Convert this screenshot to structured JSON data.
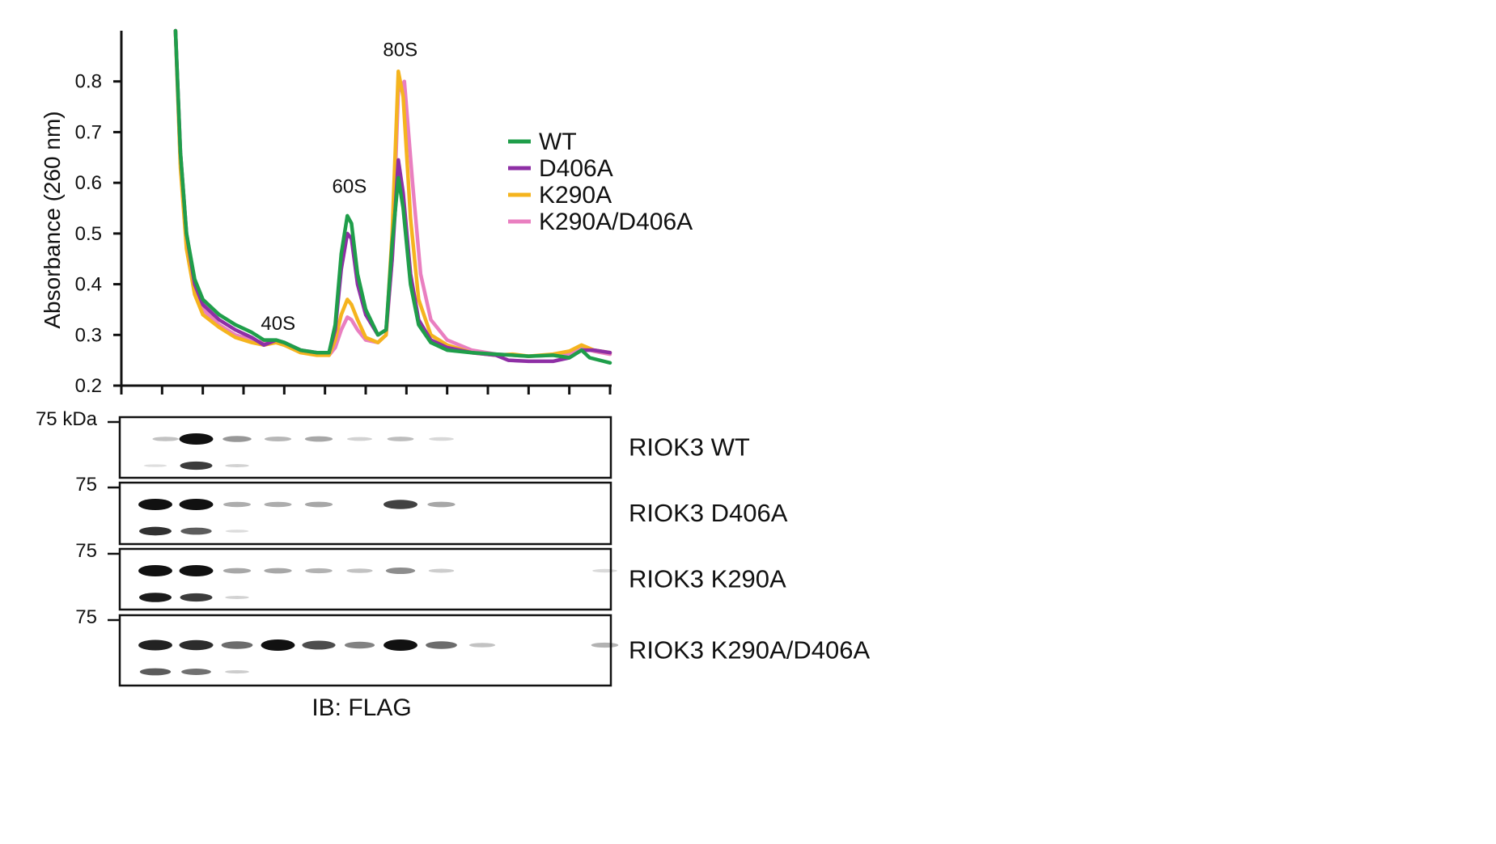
{
  "chart_data": {
    "type": "line",
    "title": "",
    "xlabel": "",
    "ylabel": "Absorbance (260 nm)",
    "xlim": [
      0,
      12
    ],
    "ylim": [
      0.2,
      0.9
    ],
    "yticks": [
      "0.2",
      "0.3",
      "0.4",
      "0.5",
      "0.6",
      "0.7",
      "0.8"
    ],
    "x_tick_count": 13,
    "legend_position": "top-right",
    "peaks": [
      {
        "label": "40S",
        "x": 3.85,
        "y": 0.31
      },
      {
        "label": "60S",
        "x": 5.6,
        "y": 0.58
      },
      {
        "label": "80S",
        "x": 6.85,
        "y": 0.85
      }
    ],
    "series": [
      {
        "name": "WT",
        "color": "#1f9e4a",
        "points": [
          [
            1.33,
            0.9
          ],
          [
            1.45,
            0.66
          ],
          [
            1.6,
            0.5
          ],
          [
            1.8,
            0.41
          ],
          [
            2.0,
            0.37
          ],
          [
            2.4,
            0.34
          ],
          [
            2.8,
            0.32
          ],
          [
            3.2,
            0.305
          ],
          [
            3.5,
            0.29
          ],
          [
            3.8,
            0.29
          ],
          [
            4.0,
            0.285
          ],
          [
            4.4,
            0.27
          ],
          [
            4.8,
            0.265
          ],
          [
            5.1,
            0.265
          ],
          [
            5.25,
            0.32
          ],
          [
            5.4,
            0.46
          ],
          [
            5.55,
            0.535
          ],
          [
            5.65,
            0.52
          ],
          [
            5.8,
            0.42
          ],
          [
            6.0,
            0.35
          ],
          [
            6.3,
            0.3
          ],
          [
            6.5,
            0.31
          ],
          [
            6.65,
            0.48
          ],
          [
            6.8,
            0.61
          ],
          [
            6.92,
            0.55
          ],
          [
            7.1,
            0.4
          ],
          [
            7.3,
            0.32
          ],
          [
            7.6,
            0.285
          ],
          [
            8.0,
            0.27
          ],
          [
            8.6,
            0.265
          ],
          [
            9.2,
            0.262
          ],
          [
            10.0,
            0.258
          ],
          [
            10.6,
            0.26
          ],
          [
            11.0,
            0.255
          ],
          [
            11.3,
            0.27
          ],
          [
            11.5,
            0.255
          ],
          [
            12.0,
            0.245
          ]
        ]
      },
      {
        "name": "D406A",
        "color": "#8e2fa5",
        "points": [
          [
            1.33,
            0.9
          ],
          [
            1.45,
            0.66
          ],
          [
            1.6,
            0.5
          ],
          [
            1.8,
            0.4
          ],
          [
            2.0,
            0.36
          ],
          [
            2.4,
            0.33
          ],
          [
            2.8,
            0.31
          ],
          [
            3.2,
            0.295
          ],
          [
            3.5,
            0.28
          ],
          [
            3.8,
            0.29
          ],
          [
            4.0,
            0.285
          ],
          [
            4.4,
            0.27
          ],
          [
            4.8,
            0.265
          ],
          [
            5.1,
            0.265
          ],
          [
            5.25,
            0.31
          ],
          [
            5.4,
            0.43
          ],
          [
            5.55,
            0.5
          ],
          [
            5.65,
            0.49
          ],
          [
            5.8,
            0.4
          ],
          [
            6.0,
            0.34
          ],
          [
            6.3,
            0.3
          ],
          [
            6.5,
            0.31
          ],
          [
            6.65,
            0.45
          ],
          [
            6.8,
            0.645
          ],
          [
            6.92,
            0.58
          ],
          [
            7.1,
            0.42
          ],
          [
            7.3,
            0.33
          ],
          [
            7.6,
            0.29
          ],
          [
            8.0,
            0.275
          ],
          [
            8.6,
            0.265
          ],
          [
            9.2,
            0.26
          ],
          [
            9.5,
            0.25
          ],
          [
            10.0,
            0.248
          ],
          [
            10.6,
            0.248
          ],
          [
            11.0,
            0.255
          ],
          [
            11.3,
            0.27
          ],
          [
            11.6,
            0.27
          ],
          [
            12.0,
            0.265
          ]
        ]
      },
      {
        "name": "K290A",
        "color": "#f5b41e",
        "points": [
          [
            1.33,
            0.9
          ],
          [
            1.45,
            0.63
          ],
          [
            1.6,
            0.47
          ],
          [
            1.8,
            0.38
          ],
          [
            2.0,
            0.34
          ],
          [
            2.4,
            0.315
          ],
          [
            2.8,
            0.295
          ],
          [
            3.2,
            0.285
          ],
          [
            3.5,
            0.28
          ],
          [
            3.8,
            0.285
          ],
          [
            4.0,
            0.28
          ],
          [
            4.4,
            0.265
          ],
          [
            4.8,
            0.26
          ],
          [
            5.1,
            0.26
          ],
          [
            5.25,
            0.29
          ],
          [
            5.4,
            0.34
          ],
          [
            5.55,
            0.37
          ],
          [
            5.65,
            0.36
          ],
          [
            5.8,
            0.33
          ],
          [
            6.0,
            0.295
          ],
          [
            6.3,
            0.285
          ],
          [
            6.5,
            0.3
          ],
          [
            6.65,
            0.5
          ],
          [
            6.8,
            0.82
          ],
          [
            6.92,
            0.77
          ],
          [
            7.1,
            0.53
          ],
          [
            7.3,
            0.37
          ],
          [
            7.6,
            0.3
          ],
          [
            8.0,
            0.28
          ],
          [
            8.6,
            0.265
          ],
          [
            9.2,
            0.26
          ],
          [
            9.6,
            0.262
          ],
          [
            10.0,
            0.258
          ],
          [
            10.6,
            0.262
          ],
          [
            11.0,
            0.268
          ],
          [
            11.3,
            0.28
          ],
          [
            11.6,
            0.27
          ],
          [
            12.0,
            0.265
          ]
        ]
      },
      {
        "name": "K290A/D406A",
        "color": "#e97fc0",
        "points": [
          [
            1.33,
            0.9
          ],
          [
            1.45,
            0.64
          ],
          [
            1.6,
            0.48
          ],
          [
            1.8,
            0.39
          ],
          [
            2.0,
            0.35
          ],
          [
            2.4,
            0.32
          ],
          [
            2.8,
            0.3
          ],
          [
            3.2,
            0.29
          ],
          [
            3.5,
            0.285
          ],
          [
            3.8,
            0.285
          ],
          [
            4.0,
            0.28
          ],
          [
            4.4,
            0.27
          ],
          [
            4.8,
            0.262
          ],
          [
            5.1,
            0.26
          ],
          [
            5.25,
            0.275
          ],
          [
            5.4,
            0.31
          ],
          [
            5.55,
            0.335
          ],
          [
            5.65,
            0.33
          ],
          [
            5.8,
            0.31
          ],
          [
            6.0,
            0.29
          ],
          [
            6.3,
            0.285
          ],
          [
            6.5,
            0.3
          ],
          [
            6.65,
            0.45
          ],
          [
            6.8,
            0.78
          ],
          [
            6.95,
            0.8
          ],
          [
            7.15,
            0.6
          ],
          [
            7.35,
            0.42
          ],
          [
            7.6,
            0.33
          ],
          [
            8.0,
            0.29
          ],
          [
            8.6,
            0.27
          ],
          [
            9.2,
            0.262
          ],
          [
            10.0,
            0.258
          ],
          [
            10.6,
            0.26
          ],
          [
            11.0,
            0.262
          ],
          [
            11.3,
            0.275
          ],
          [
            11.6,
            0.268
          ],
          [
            12.0,
            0.262
          ]
        ]
      }
    ]
  },
  "blots": {
    "panels": [
      {
        "label": "RIOK3 WT",
        "mw": "75 kDa",
        "bands": [
          [
            0.25,
            0.3
          ],
          [
            1,
            2.0
          ],
          [
            1,
            1.3
          ],
          [
            2,
            0.7
          ],
          [
            3,
            0.4
          ],
          [
            4,
            0.55
          ],
          [
            5,
            0.15
          ],
          [
            6,
            0.35
          ],
          [
            7,
            0.1
          ]
        ],
        "lower_bands": [
          [
            0,
            0.08
          ],
          [
            1,
            1.6
          ],
          [
            2,
            0.2
          ]
        ]
      },
      {
        "label": "RIOK3 D406A",
        "mw": "75",
        "bands": [
          [
            0,
            2.0
          ],
          [
            1,
            2.0
          ],
          [
            2,
            0.5
          ],
          [
            3,
            0.5
          ],
          [
            4,
            0.55
          ],
          [
            6,
            1.5
          ],
          [
            7,
            0.55
          ]
        ],
        "lower_bands": [
          [
            0,
            1.7
          ],
          [
            1,
            1.3
          ],
          [
            2,
            0.1
          ]
        ]
      },
      {
        "label": "RIOK3 K290A",
        "mw": "75",
        "bands": [
          [
            0,
            2.0
          ],
          [
            1,
            2.0
          ],
          [
            2,
            0.55
          ],
          [
            3,
            0.55
          ],
          [
            4,
            0.45
          ],
          [
            5,
            0.3
          ],
          [
            6,
            0.8
          ],
          [
            7,
            0.2
          ],
          [
            11,
            0.08
          ]
        ],
        "lower_bands": [
          [
            0,
            1.9
          ],
          [
            1,
            1.6
          ],
          [
            2,
            0.2
          ]
        ]
      },
      {
        "label": "RIOK3 K290A/D406A",
        "mw": "75",
        "bands": [
          [
            0,
            1.8
          ],
          [
            1,
            1.7
          ],
          [
            2,
            1.1
          ],
          [
            3,
            2.0
          ],
          [
            4,
            1.4
          ],
          [
            5,
            0.9
          ],
          [
            6,
            2.0
          ],
          [
            7,
            1.1
          ],
          [
            8,
            0.3
          ],
          [
            11,
            0.45
          ]
        ],
        "lower_bands": [
          [
            0,
            1.3
          ],
          [
            1,
            1.1
          ],
          [
            2,
            0.25
          ]
        ]
      }
    ],
    "ib_label": "IB: FLAG"
  }
}
